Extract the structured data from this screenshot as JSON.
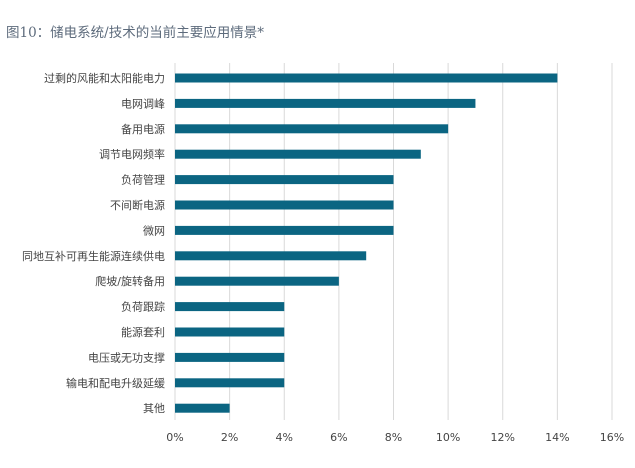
{
  "chart_data": {
    "type": "bar",
    "orientation": "horizontal",
    "title": "图10：储电系统/技术的当前主要应用情景*",
    "categories": [
      "过剩的风能和太阳能电力",
      "电网调峰",
      "备用电源",
      "调节电网频率",
      "负荷管理",
      "不间断电源",
      "微网",
      "同地互补可再生能源连续供电",
      "爬坡/旋转备用",
      "负荷跟踪",
      "能源套利",
      "电压或无功支撑",
      "输电和配电升级延缓",
      "其他"
    ],
    "values": [
      14,
      11,
      10,
      9,
      8,
      8,
      8,
      7,
      6,
      4,
      4,
      4,
      4,
      2
    ],
    "xlim": [
      0,
      16
    ],
    "xticks": [
      "0%",
      "2%",
      "4%",
      "6%",
      "8%",
      "10%",
      "12%",
      "14%",
      "16%"
    ],
    "xlabel": "",
    "ylabel": "",
    "grid": "vertical",
    "legend": "none",
    "bar_color": "#0b6582",
    "grid_color": "#d9d9d9"
  }
}
